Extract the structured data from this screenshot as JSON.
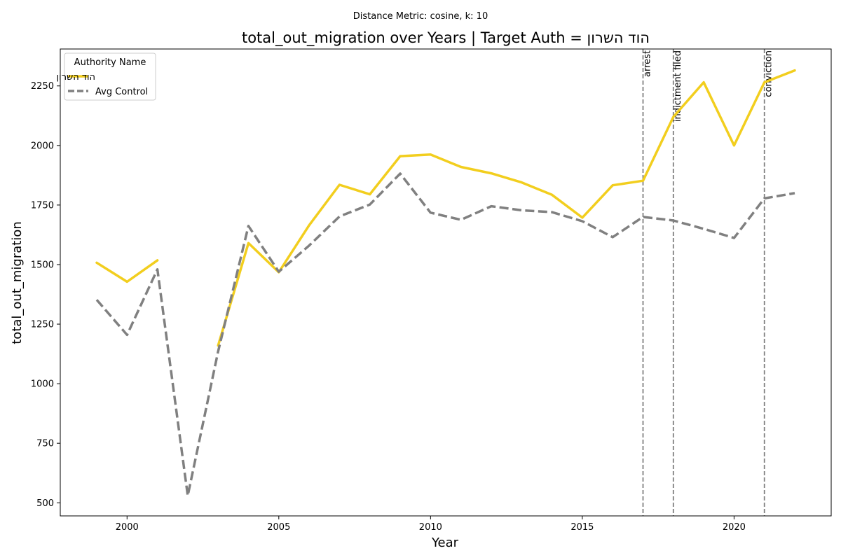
{
  "chart_data": {
    "type": "line",
    "suptitle": "Distance Metric: cosine, k: 10",
    "title": "total_out_migration over Years | Target Auth = הוד השרון",
    "xlabel": "Year",
    "ylabel": "total_out_migration",
    "xlim": [
      1997.8,
      2023.2
    ],
    "ylim": [
      445,
      2405
    ],
    "xticks": [
      2000,
      2005,
      2010,
      2015,
      2020
    ],
    "yticks": [
      500,
      750,
      1000,
      1250,
      1500,
      1750,
      2000,
      2250
    ],
    "legend": {
      "title": "Authority Name",
      "placement": "top-left"
    },
    "series": [
      {
        "name": "הוד השרון",
        "color": "#f2ce1e",
        "style": "solid",
        "points": [
          [
            1999,
            1508
          ],
          [
            2000,
            1428
          ],
          [
            2001,
            1518
          ],
          [
            2003,
            1160
          ],
          [
            2004,
            1590
          ],
          [
            2005,
            1468
          ],
          [
            2006,
            1665
          ],
          [
            2007,
            1835
          ],
          [
            2008,
            1795
          ],
          [
            2009,
            1955
          ],
          [
            2010,
            1962
          ],
          [
            2011,
            1910
          ],
          [
            2012,
            1883
          ],
          [
            2013,
            1845
          ],
          [
            2014,
            1793
          ],
          [
            2015,
            1697
          ],
          [
            2016,
            1833
          ],
          [
            2017,
            1852
          ],
          [
            2018,
            2120
          ],
          [
            2019,
            2265
          ],
          [
            2020,
            2000
          ],
          [
            2021,
            2265
          ],
          [
            2022,
            2315
          ]
        ]
      },
      {
        "name": "Avg Control",
        "color": "#808080",
        "style": "dashed",
        "points": [
          [
            1999,
            1352
          ],
          [
            2000,
            1205
          ],
          [
            2001,
            1480
          ],
          [
            2002,
            530
          ],
          [
            2003,
            1135
          ],
          [
            2004,
            1662
          ],
          [
            2005,
            1470
          ],
          [
            2006,
            1580
          ],
          [
            2007,
            1702
          ],
          [
            2008,
            1752
          ],
          [
            2009,
            1882
          ],
          [
            2010,
            1718
          ],
          [
            2011,
            1688
          ],
          [
            2012,
            1745
          ],
          [
            2013,
            1728
          ],
          [
            2014,
            1720
          ],
          [
            2015,
            1682
          ],
          [
            2016,
            1615
          ],
          [
            2017,
            1700
          ],
          [
            2018,
            1685
          ],
          [
            2019,
            1650
          ],
          [
            2020,
            1612
          ],
          [
            2021,
            1778
          ],
          [
            2022,
            1800
          ]
        ]
      }
    ],
    "events": [
      {
        "year": 2017,
        "label": "arrest"
      },
      {
        "year": 2018,
        "label": "indictment filed"
      },
      {
        "year": 2021,
        "label": "conviction"
      }
    ],
    "event_color": "#808080"
  }
}
